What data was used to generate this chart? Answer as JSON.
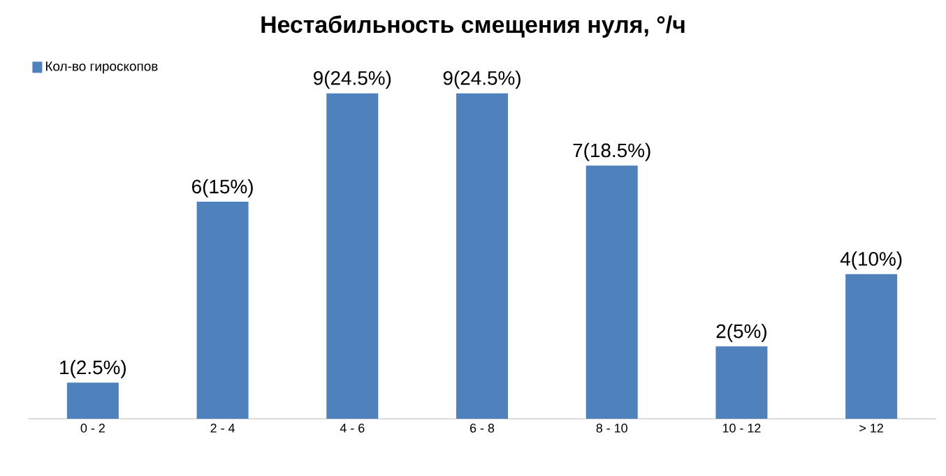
{
  "chart_data": {
    "type": "bar",
    "title": "Нестабильность смещения нуля, °/ч",
    "categories": [
      "0 - 2",
      "2 - 4",
      "4 - 6",
      "6 - 8",
      "8 - 10",
      "10 - 12",
      "> 12"
    ],
    "series": [
      {
        "name": "Кол-во гироскопов",
        "color": "#4f81bd",
        "values": [
          1,
          6,
          9,
          9,
          7,
          2,
          4
        ],
        "value_labels": [
          "1(2.5%)",
          "6(15%)",
          "9(24.5%)",
          "9(24.5%)",
          "7(18.5%)",
          "2(5%)",
          "4(10%)"
        ]
      }
    ],
    "legend": "top left"
  }
}
